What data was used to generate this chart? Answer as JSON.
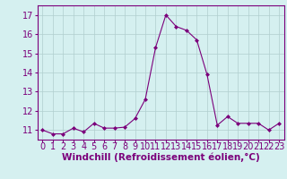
{
  "x": [
    0,
    1,
    2,
    3,
    4,
    5,
    6,
    7,
    8,
    9,
    10,
    11,
    12,
    13,
    14,
    15,
    16,
    17,
    18,
    19,
    20,
    21,
    22,
    23
  ],
  "y": [
    11.0,
    10.8,
    10.8,
    11.1,
    10.9,
    11.35,
    11.1,
    11.1,
    11.15,
    11.6,
    12.6,
    15.3,
    17.0,
    16.4,
    16.2,
    15.7,
    13.9,
    11.25,
    11.7,
    11.35,
    11.35,
    11.35,
    11.0,
    11.35
  ],
  "line_color": "#7b007b",
  "marker": "D",
  "marker_size": 2,
  "bg_color": "#d5f0f0",
  "grid_color": "#b0cece",
  "xlabel": "Windchill (Refroidissement éolien,°C)",
  "xlabel_color": "#7b007b",
  "tick_color": "#7b007b",
  "axis_color": "#7b007b",
  "ylim": [
    10.5,
    17.5
  ],
  "xlim": [
    -0.5,
    23.5
  ],
  "yticks": [
    11,
    12,
    13,
    14,
    15,
    16,
    17
  ],
  "xticks": [
    0,
    1,
    2,
    3,
    4,
    5,
    6,
    7,
    8,
    9,
    10,
    11,
    12,
    13,
    14,
    15,
    16,
    17,
    18,
    19,
    20,
    21,
    22,
    23
  ],
  "tick_fontsize": 7,
  "xlabel_fontsize": 7.5
}
